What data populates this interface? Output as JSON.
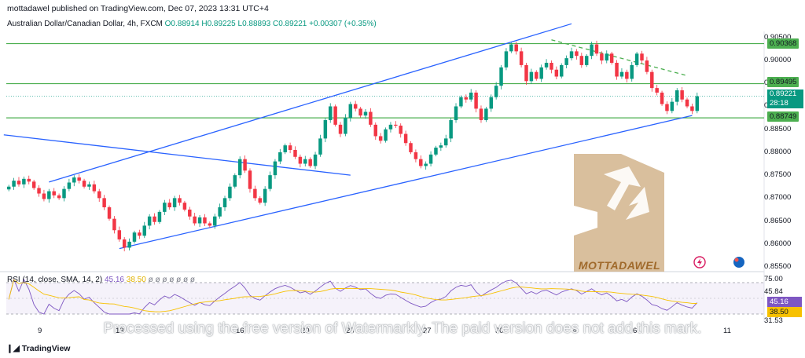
{
  "header": {
    "publisher": "mottadawel published on TradingView.com, Dec 07, 2023 13:31 UTC+4"
  },
  "symbol": {
    "title": "Australian Dollar/Canadian Dollar, 4h, FXCM",
    "ohlc": "O0.88914 H0.89225 L0.88893 C0.89221 +0.00307 (+0.35%)"
  },
  "indicator": {
    "label": "RSI (14, close, SMA, 14, 2)",
    "rsi_value": "45.16",
    "sma_value": "38.50",
    "rest": "ø ø ø ø ø ø ø"
  },
  "watermark": "Processed using the free version of Watermarkly. The paid version does not add this mark.",
  "brand": {
    "text": "MOTTADAWEL"
  },
  "footer": {
    "logo_text": "TradingView"
  },
  "price_tags": {
    "top": "0.90368",
    "upper": "0.89495",
    "current": "0.89221",
    "countdown": "28:18",
    "lower": "0.88749",
    "rsi": "45.16",
    "rsi_sma": "38.50"
  },
  "colors": {
    "up": "#089981",
    "down": "#f23645",
    "trend": "#2962ff",
    "hline": "#4caf50",
    "rsi": "#7e57c2",
    "rsi_sma": "#f7c100",
    "brand": "#d2b48c"
  },
  "chart_data": {
    "type": "candlestick",
    "y_axis": {
      "range": [
        0.855,
        0.906
      ],
      "ticks": [
        "0.90500",
        "0.90000",
        "0.89500",
        "0.89000",
        "0.88500",
        "0.88000",
        "0.87500",
        "0.87000",
        "0.86500",
        "0.86000",
        "0.85500"
      ]
    },
    "x_axis": {
      "ticks": [
        "9",
        "13",
        "16",
        "20",
        "23",
        "27",
        "30",
        "4",
        "6",
        "11"
      ]
    },
    "horizontal_levels": [
      0.90368,
      0.89495,
      0.88749
    ],
    "current_price": 0.89221,
    "closes": [
      0.8725,
      0.8738,
      0.873,
      0.8742,
      0.8736,
      0.8722,
      0.871,
      0.8698,
      0.8715,
      0.8706,
      0.87,
      0.872,
      0.8734,
      0.8745,
      0.8738,
      0.8725,
      0.873,
      0.8715,
      0.87,
      0.868,
      0.8655,
      0.863,
      0.861,
      0.8592,
      0.8605,
      0.8625,
      0.8618,
      0.864,
      0.866,
      0.8648,
      0.867,
      0.869,
      0.868,
      0.87,
      0.869,
      0.8675,
      0.866,
      0.8645,
      0.8658,
      0.8645,
      0.864,
      0.866,
      0.868,
      0.87,
      0.8725,
      0.875,
      0.8785,
      0.876,
      0.872,
      0.87,
      0.869,
      0.872,
      0.875,
      0.878,
      0.88,
      0.8815,
      0.8805,
      0.879,
      0.8775,
      0.8785,
      0.877,
      0.8795,
      0.883,
      0.887,
      0.89,
      0.886,
      0.884,
      0.8875,
      0.8905,
      0.8895,
      0.888,
      0.8888,
      0.886,
      0.8835,
      0.8825,
      0.885,
      0.886,
      0.8858,
      0.884,
      0.882,
      0.88,
      0.8785,
      0.877,
      0.8775,
      0.8795,
      0.881,
      0.8815,
      0.883,
      0.887,
      0.89,
      0.892,
      0.8915,
      0.893,
      0.8895,
      0.887,
      0.8895,
      0.892,
      0.8945,
      0.8985,
      0.902,
      0.9035,
      0.902,
      0.899,
      0.8955,
      0.8975,
      0.896,
      0.8985,
      0.8995,
      0.898,
      0.8965,
      0.899,
      0.9005,
      0.902,
      0.901,
      0.899,
      0.901,
      0.9035,
      0.9015,
      0.9,
      0.9015,
      0.8995,
      0.8965,
      0.8975,
      0.896,
      0.899,
      0.9015,
      0.9,
      0.8975,
      0.894,
      0.893,
      0.8905,
      0.889,
      0.891,
      0.8935,
      0.8915,
      0.89,
      0.889,
      0.8922
    ],
    "rsi_range": [
      31.53,
      75.0
    ],
    "rsi_ticks": [
      "75.00",
      "45.84",
      "31.53"
    ]
  }
}
